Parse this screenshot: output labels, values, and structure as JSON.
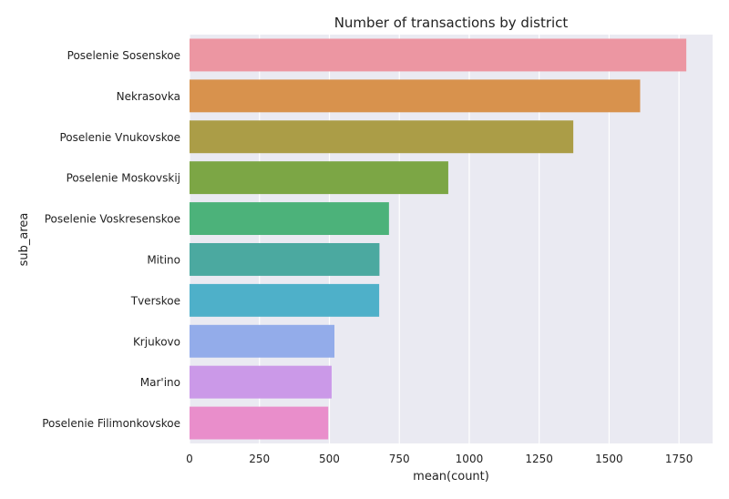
{
  "chart_data": {
    "type": "bar",
    "orientation": "horizontal",
    "title": "Number of transactions by district",
    "xlabel": "mean(count)",
    "ylabel": "sub_area",
    "xlim": [
      0,
      1870
    ],
    "xticks": [
      0,
      250,
      500,
      750,
      1000,
      1250,
      1500,
      1750
    ],
    "grid": true,
    "categories": [
      "Poselenie Sosenskoe",
      "Nekrasovka",
      "Poselenie Vnukovskoe",
      "Poselenie Moskovskij",
      "Poselenie Voskresenskoe",
      "Mitino",
      "Tverskoe",
      "Krjukovo",
      "Mar'ino",
      "Poselenie Filimonkovskoe"
    ],
    "values": [
      1776,
      1611,
      1372,
      925,
      713,
      679,
      678,
      518,
      508,
      496
    ],
    "colors": [
      "#ec96a2",
      "#d8924d",
      "#ab9d47",
      "#7ca645",
      "#4cb27a",
      "#4ba9a0",
      "#4eb0c9",
      "#93acea",
      "#cb99e8",
      "#e98ecb"
    ],
    "background": "#eaeaf2",
    "grid_color": "#ffffff"
  }
}
